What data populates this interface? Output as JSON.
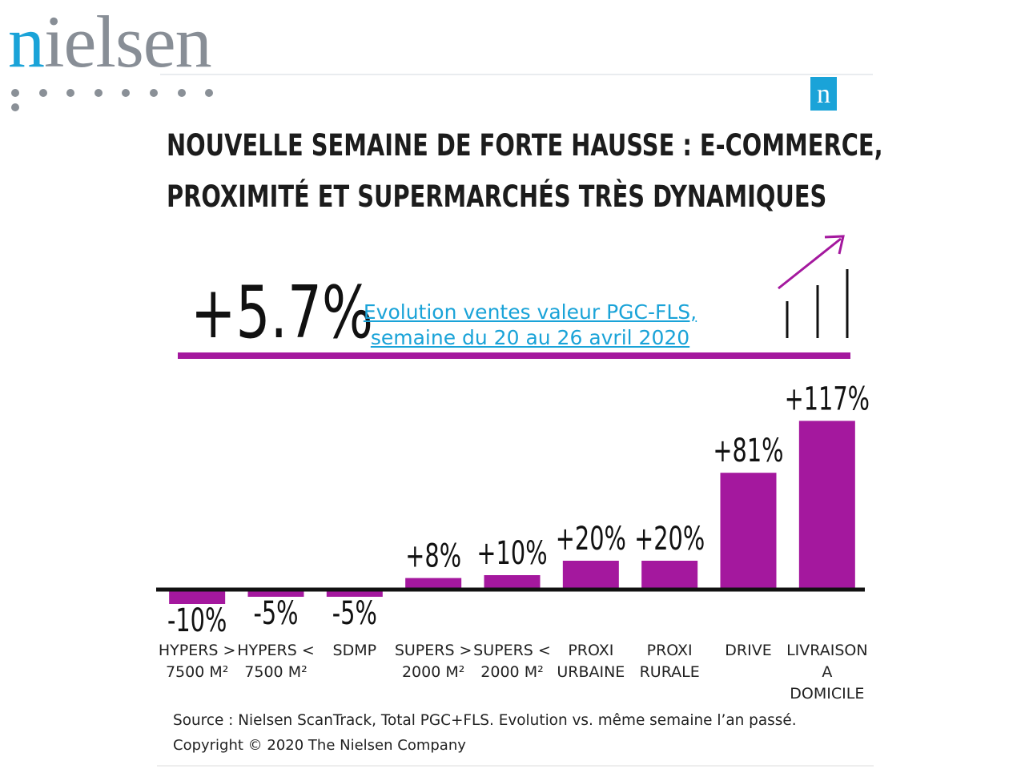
{
  "brand": {
    "wordmark_first": "n",
    "wordmark_rest": "ielsen",
    "badge": "n",
    "color": "#1aa3d8"
  },
  "title_lines": [
    "NOUVELLE SEMAINE DE FORTE HAUSSE : E-COMMERCE,",
    "PROXIMITÉ ET SUPERMARCHÉS TRÈS DYNAMIQUES"
  ],
  "headline": {
    "value": "+5.7%",
    "label_line1": "Evolution ventes valeur PGC-FLS,",
    "label_line2": "semaine du 20 au 26 avril 2020"
  },
  "footer": {
    "source": "Source : Nielsen ScanTrack, Total PGC+FLS. Evolution vs. même semaine l’an passé.",
    "copyright": "Copyright © 2020 The Nielsen Company"
  },
  "colors": {
    "bar": "#a4189e",
    "accent": "#a4189e",
    "link": "#1aa3d8"
  },
  "icons": [
    "growth-arrow-icon"
  ],
  "chart_data": {
    "type": "bar",
    "title": "",
    "xlabel": "",
    "ylabel": "",
    "categories": [
      [
        "HYPERS >",
        "7500 M²"
      ],
      [
        "HYPERS <",
        "7500 M²"
      ],
      [
        "SDMP"
      ],
      [
        "SUPERS >",
        "2000 M²"
      ],
      [
        "SUPERS <",
        "2000 M²"
      ],
      [
        "PROXI",
        "URBAINE"
      ],
      [
        "PROXI",
        "RURALE"
      ],
      [
        "DRIVE"
      ],
      [
        "LIVRAISON",
        "A",
        "DOMICILE"
      ]
    ],
    "values": [
      -10,
      -5,
      -5,
      8,
      10,
      20,
      20,
      81,
      117
    ],
    "labels": [
      "-10%",
      "-5%",
      "-5%",
      "+8%",
      "+10%",
      "+20%",
      "+20%",
      "+81%",
      "+117%"
    ],
    "grid": false,
    "legend": "none"
  }
}
